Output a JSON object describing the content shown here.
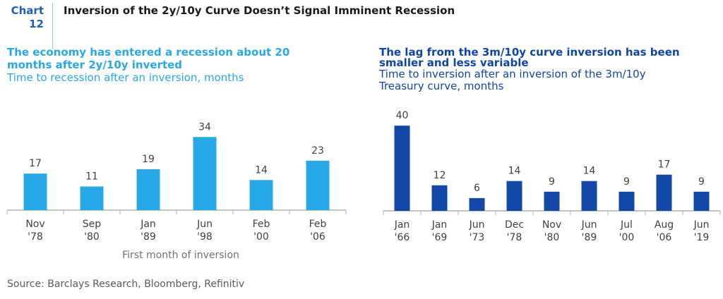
{
  "header": {
    "chart_label_line1": "Chart",
    "chart_label_line2": "12",
    "title": "Inversion of the 2y/10y Curve Doesn’t Signal Imminent Recession"
  },
  "left_panel": {
    "title_line1": "The economy has entered a recession about 20",
    "title_line2": "months after 2y/10y inverted",
    "subtitle": "Time to recession after an inversion, months",
    "x_axis_title": "First month of inversion"
  },
  "right_panel": {
    "title_line1": "The lag from the 3m/10y curve inversion has been",
    "title_line2": "smaller and less variable",
    "subtitle_line1": "Time to inversion after an inversion of the 3m/10y",
    "subtitle_line2": "Treasury curve, months"
  },
  "source": "Source: Barclays Research, Bloomberg, Refinitiv",
  "colors": {
    "left_bar": "#27a8e8",
    "right_bar": "#1248a8",
    "axis": "#b0b0b0"
  },
  "chart_data": [
    {
      "type": "bar",
      "title": "The economy has entered a recession about 20 months after 2y/10y inverted",
      "ylabel": "Time to recession after an inversion, months",
      "xlabel": "First month of inversion",
      "categories": [
        [
          "Nov",
          "'78"
        ],
        [
          "Sep",
          "'80"
        ],
        [
          "Jan",
          "'89"
        ],
        [
          "Jun",
          "'98"
        ],
        [
          "Feb",
          "'00"
        ],
        [
          "Feb",
          "'06"
        ]
      ],
      "values": [
        17,
        11,
        19,
        34,
        14,
        23
      ],
      "ylim": [
        0,
        40
      ]
    },
    {
      "type": "bar",
      "title": "The lag from the 3m/10y curve inversion has been smaller and less variable",
      "ylabel": "Time to inversion after an inversion of the 3m/10y Treasury curve, months",
      "xlabel": "",
      "categories": [
        [
          "Jan",
          "'66"
        ],
        [
          "Jan",
          "'69"
        ],
        [
          "Jun",
          "'73"
        ],
        [
          "Dec",
          "'78"
        ],
        [
          "Nov",
          "'80"
        ],
        [
          "Jun",
          "'89"
        ],
        [
          "Jul",
          "'00"
        ],
        [
          "Aug",
          "'06"
        ],
        [
          "Jun",
          "'19"
        ]
      ],
      "values": [
        40,
        12,
        6,
        14,
        9,
        14,
        9,
        17,
        9
      ],
      "ylim": [
        0,
        40
      ]
    }
  ]
}
